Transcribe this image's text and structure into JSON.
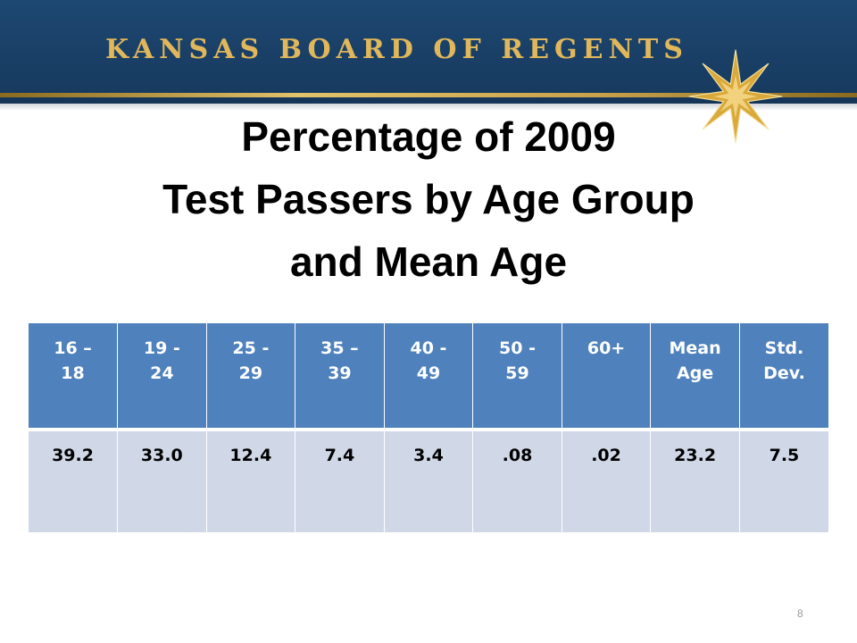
{
  "header": {
    "org_name": "KANSAS BOARD OF REGENTS",
    "logo_icon": "star-icon",
    "colors": {
      "banner": "#1a3f66",
      "gold": "#e0b75a"
    }
  },
  "title": {
    "line1": "Percentage of 2009",
    "line2": "Test Passers by Age Group",
    "line3": "and Mean Age"
  },
  "table": {
    "headers": [
      {
        "line1": "16 –",
        "line2": "18"
      },
      {
        "line1": "19 -",
        "line2": "24"
      },
      {
        "line1": "25 -",
        "line2": "29"
      },
      {
        "line1": "35 –",
        "line2": "39"
      },
      {
        "line1": "40 -",
        "line2": "49"
      },
      {
        "line1": "50 -",
        "line2": "59"
      },
      {
        "line1": "60+",
        "line2": ""
      },
      {
        "line1": "Mean",
        "line2": "Age"
      },
      {
        "line1": "Std.",
        "line2": "Dev."
      }
    ],
    "values": [
      "39.2",
      "33.0",
      "12.4",
      "7.4",
      "3.4",
      ".08",
      ".02",
      "23.2",
      "7.5"
    ],
    "colors": {
      "header": "#4f81bd",
      "row": "#d0d8e8"
    }
  },
  "footer": {
    "page_number": "8"
  }
}
